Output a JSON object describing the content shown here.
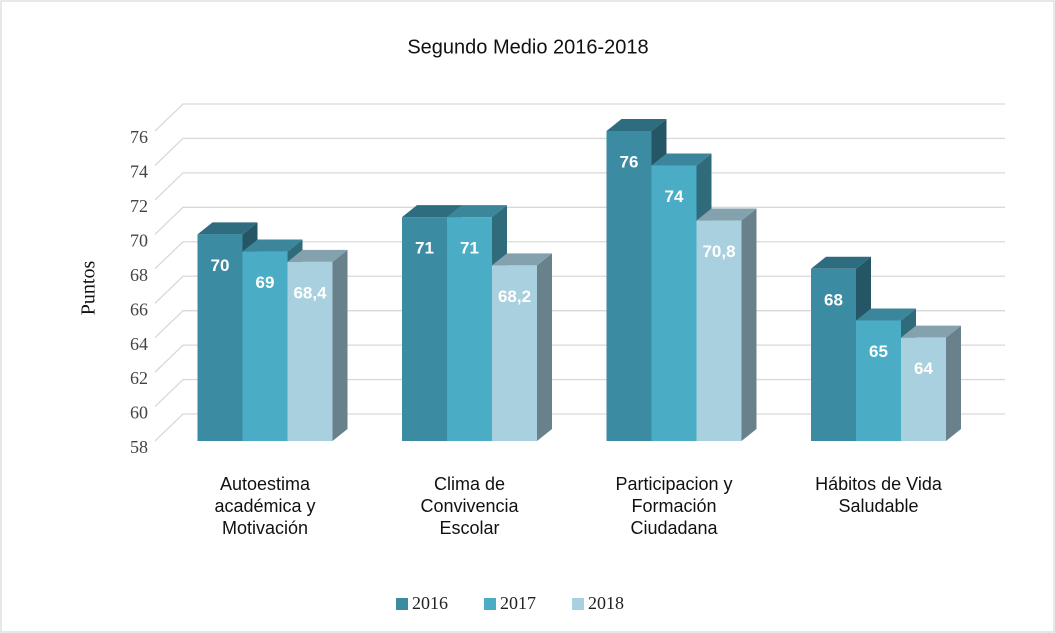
{
  "chart_data": {
    "type": "bar3d",
    "title": "Segundo Medio 2016-2018",
    "y_label": "Puntos",
    "categories": [
      "Autoestima académica y Motivación",
      "Clima de Convivencia Escolar",
      "Participacion y Formación Ciudadana",
      "Hábitos de Vida Saludable"
    ],
    "series": [
      {
        "name": "2016",
        "color": "#3b8ba3",
        "values": [
          70,
          71,
          76,
          68
        ]
      },
      {
        "name": "2017",
        "color": "#4bacc6",
        "values": [
          69,
          71,
          74,
          65
        ]
      },
      {
        "name": "2018",
        "color": "#a9d0de",
        "values": [
          68.4,
          68.2,
          70.8,
          64
        ],
        "value_labels": [
          "68,4",
          "68,2",
          "70,8",
          "64"
        ]
      }
    ],
    "ylim": [
      58,
      76
    ],
    "yticks": [
      58,
      60,
      62,
      64,
      66,
      68,
      70,
      72,
      74,
      76
    ],
    "grid": true,
    "legend": "bottom"
  }
}
